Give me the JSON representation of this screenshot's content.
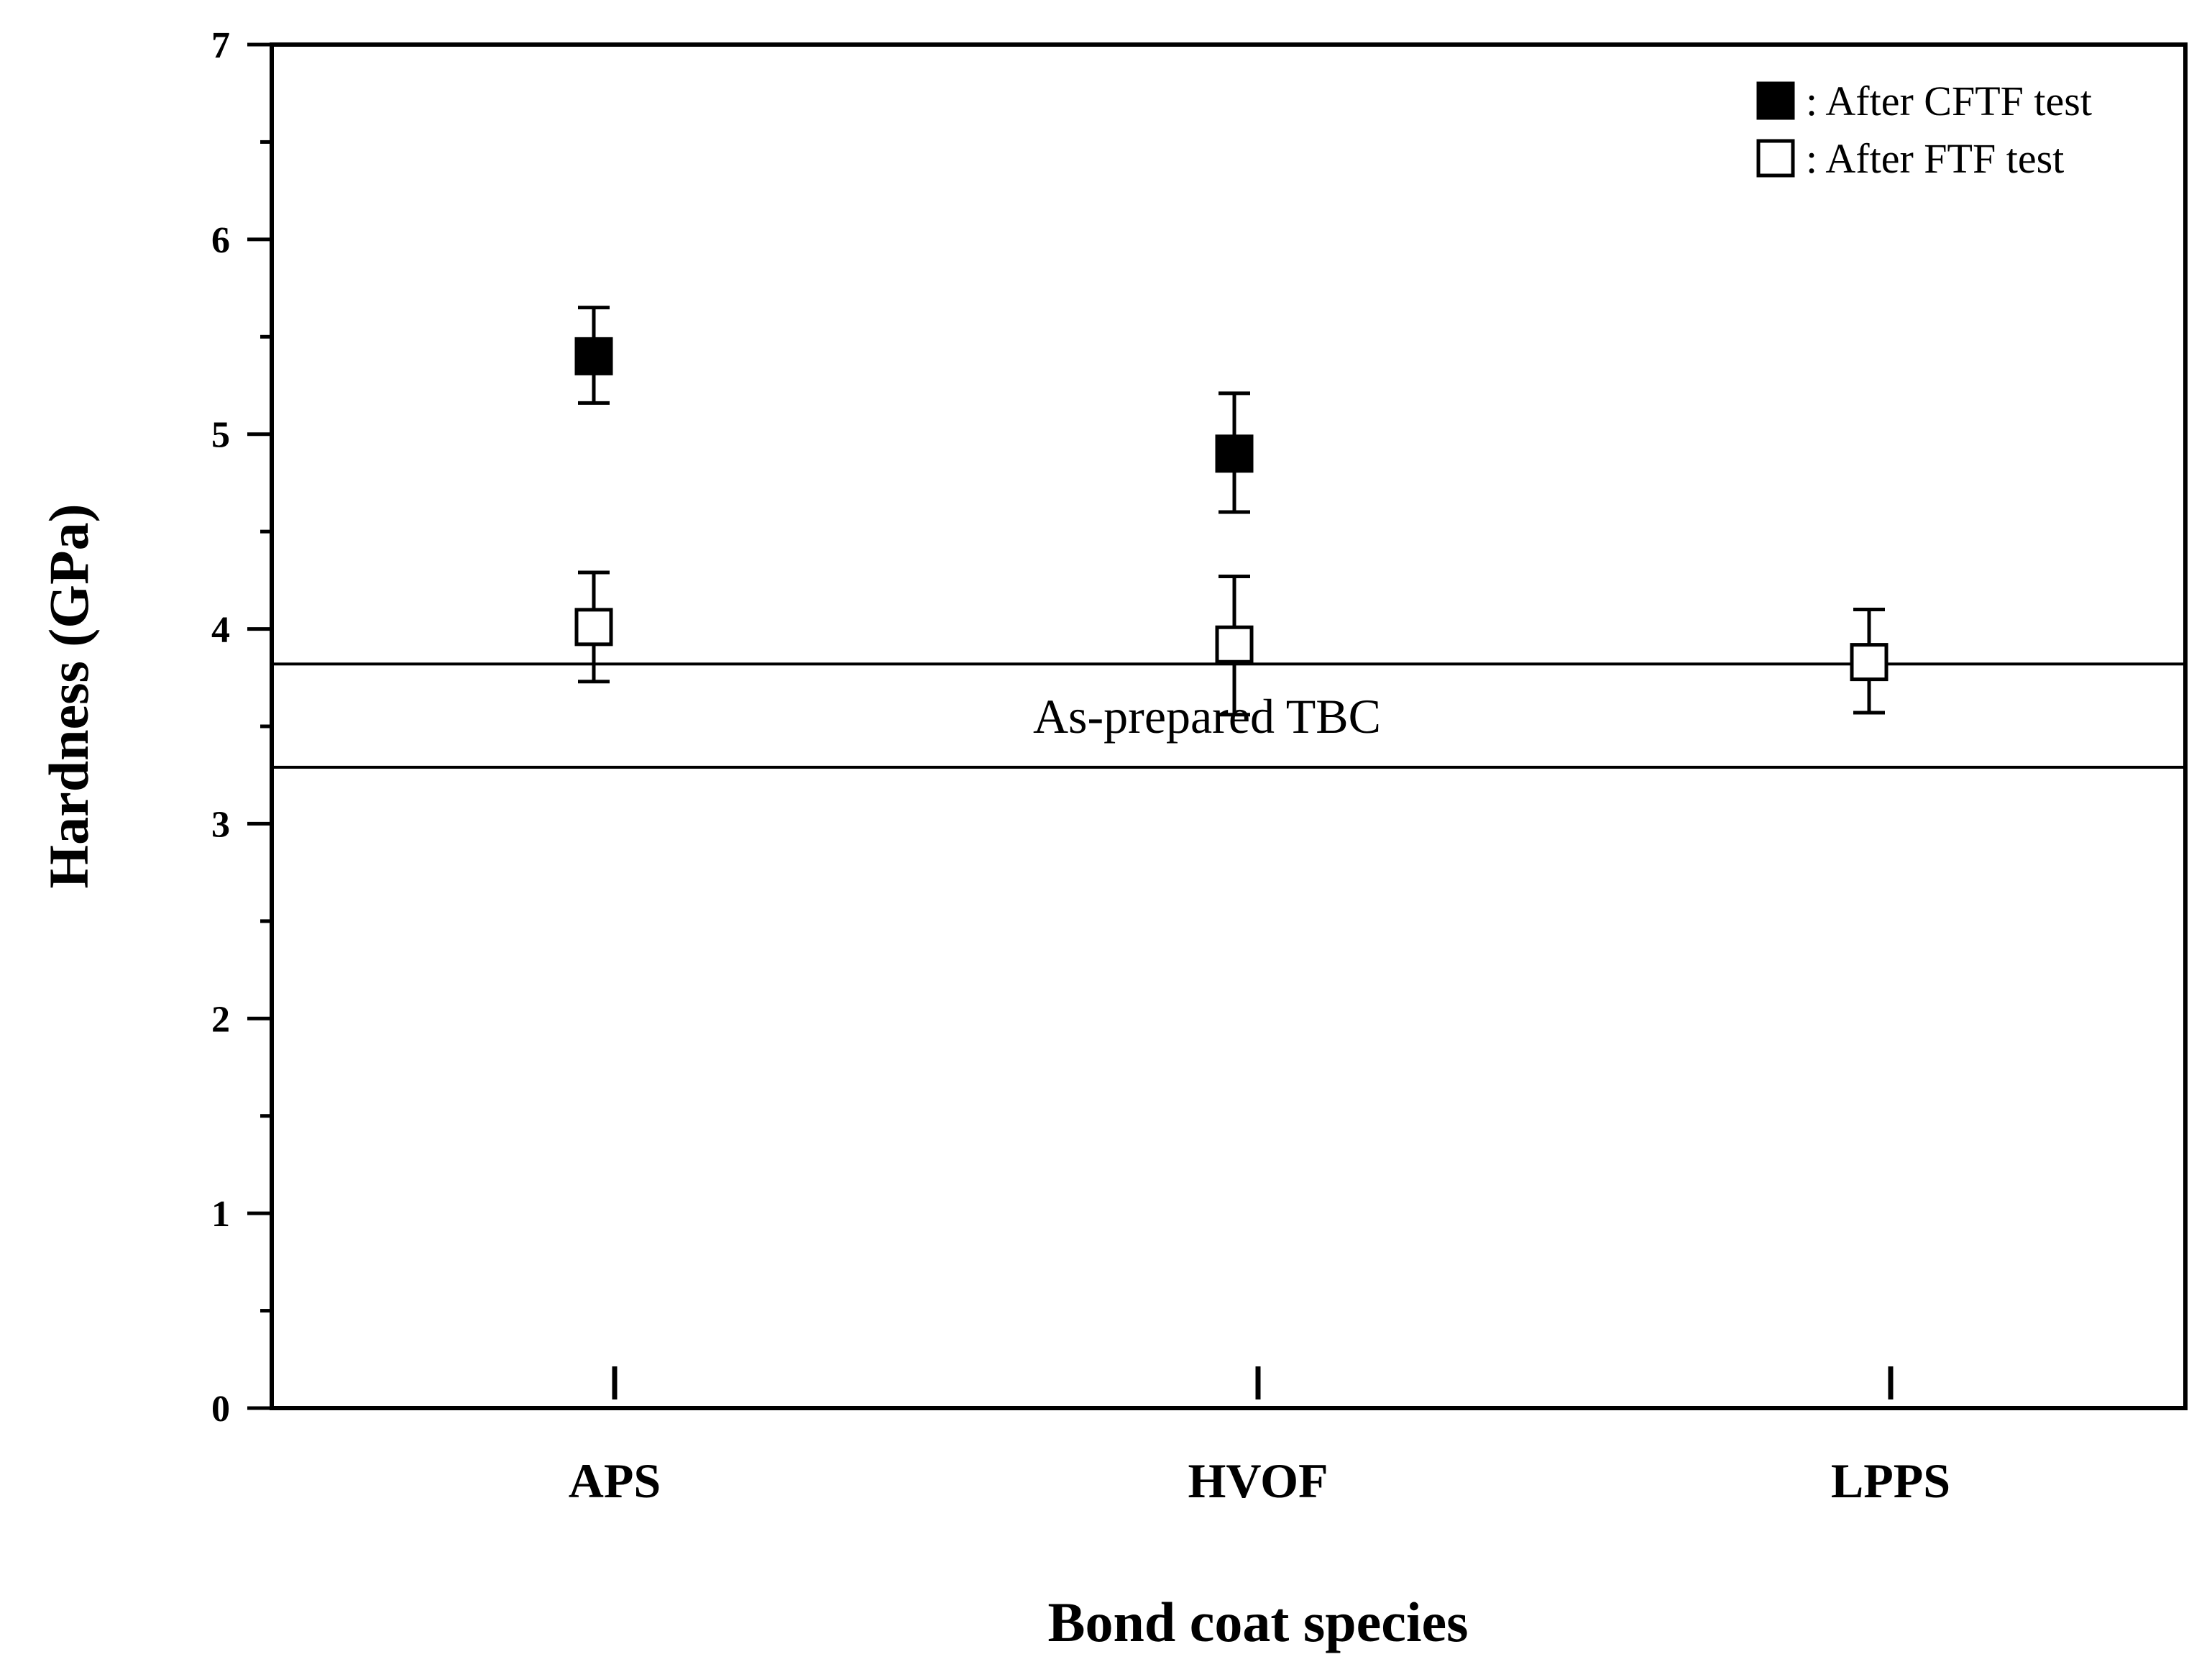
{
  "chart_data": {
    "type": "scatter",
    "title": "",
    "xlabel": "Bond coat species",
    "ylabel": "Hardness (GPa)",
    "categories": [
      "APS",
      "HVOF",
      "LPPS"
    ],
    "ylim": [
      0,
      7
    ],
    "yticks": [
      "0",
      "1",
      "2",
      "3",
      "4",
      "5",
      "6",
      "7"
    ],
    "grid": false,
    "legend_position": "top-right",
    "series": [
      {
        "name": ": After CFTF test",
        "marker": "filled-square",
        "color": "#000000",
        "points": [
          {
            "category": "APS",
            "value": 5.4,
            "err_low": 5.16,
            "err_high": 5.65
          },
          {
            "category": "HVOF",
            "value": 4.9,
            "err_low": 4.6,
            "err_high": 5.21
          }
        ]
      },
      {
        "name": ": After FTF test",
        "marker": "open-square",
        "color": "#000000",
        "points": [
          {
            "category": "APS",
            "value": 4.01,
            "err_low": 3.73,
            "err_high": 4.29
          },
          {
            "category": "HVOF",
            "value": 3.92,
            "err_low": 3.56,
            "err_high": 4.27
          },
          {
            "category": "LPPS",
            "value": 3.83,
            "err_low": 3.57,
            "err_high": 4.1
          }
        ]
      }
    ],
    "reference_band": {
      "label": "As-prepared TBC",
      "ymin": 3.29,
      "ymax": 3.82
    }
  }
}
